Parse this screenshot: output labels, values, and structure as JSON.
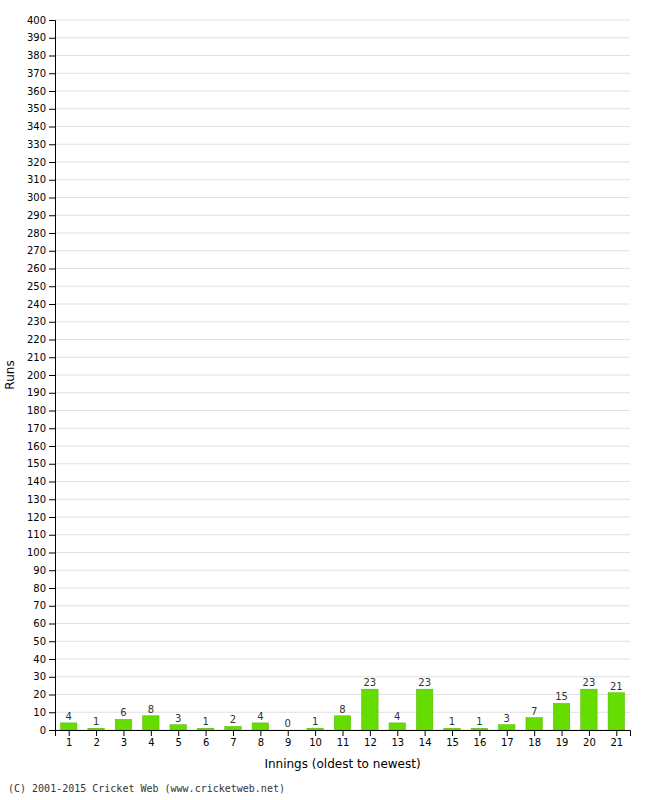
{
  "chart_data": {
    "type": "bar",
    "xlabel": "Innings (oldest to newest)",
    "ylabel": "Runs",
    "x": [
      1,
      2,
      3,
      4,
      5,
      6,
      7,
      8,
      9,
      10,
      11,
      12,
      13,
      14,
      15,
      16,
      17,
      18,
      19,
      20,
      21
    ],
    "values": [
      4,
      1,
      6,
      8,
      3,
      1,
      2,
      4,
      0,
      1,
      8,
      23,
      4,
      23,
      1,
      1,
      3,
      7,
      15,
      23,
      21
    ],
    "color": "#66dd00",
    "xlim": [
      0.5,
      21.5
    ],
    "xticks": [
      1,
      2,
      3,
      4,
      5,
      6,
      7,
      8,
      9,
      10,
      11,
      12,
      13,
      14,
      15,
      16,
      17,
      18,
      19,
      20,
      21
    ],
    "ylim": [
      0,
      400
    ],
    "yticks": [
      0,
      10,
      20,
      30,
      40,
      50,
      60,
      70,
      80,
      90,
      100,
      110,
      120,
      130,
      140,
      150,
      160,
      170,
      180,
      190,
      200,
      210,
      220,
      230,
      240,
      250,
      260,
      270,
      280,
      290,
      300,
      310,
      320,
      330,
      340,
      350,
      360,
      370,
      380,
      390,
      400
    ],
    "grid": true,
    "data_labels": true,
    "annotations": [
      "(C) 2001-2015 Cricket Web (www.cricketweb.net)"
    ]
  }
}
